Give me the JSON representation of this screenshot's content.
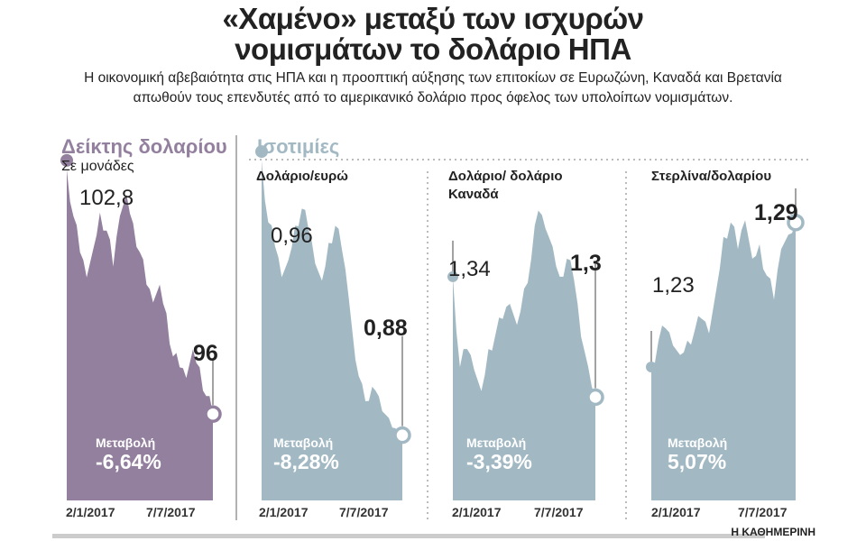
{
  "title_lines": [
    "«Χαμένο» μεταξύ των ισχυρών",
    "νομισμάτων το δολάριο ΗΠΑ"
  ],
  "subtitle_lines": [
    "Η οικονομική αβεβαιότητα στις ΗΠΑ και η προοπτική αύξησης των επιτοκίων σε Ευρωζώνη, Καναδά και Βρετανία",
    "απωθούν τους επενδυτές από το αμερικανικό δολάριο προς όφελος των υπολοίπων νομισμάτων."
  ],
  "sections": {
    "index": "Δείκτης δολαρίου",
    "index_unit": "Σε μονάδες",
    "rates": "Ισοτιμίες"
  },
  "source": "Η ΚΑΘΗΜΕΡΙΝΗ",
  "colors": {
    "index": "#93809f",
    "rates": "#a2b9c4"
  },
  "chart_data": [
    {
      "type": "area",
      "title": "",
      "start_label": "102,8",
      "end_label": "96",
      "change_label": "Μεταβολή",
      "change": "-6,64%",
      "x_ticks": [
        "2/1/2017",
        "7/7/2017"
      ],
      "ylim": [
        93.6,
        104
      ],
      "values": [
        102.8,
        101.5,
        100.5,
        99.8,
        100.6,
        101.6,
        101.1,
        100.1,
        101.5,
        102.1,
        101.3,
        100.5,
        99.6,
        99.1,
        99.6,
        98.8,
        97.6,
        97.3,
        97.0,
        97.8,
        97.3,
        96.5,
        96.0
      ]
    },
    {
      "type": "area",
      "title": "Δολάριο/ευρώ",
      "start_label": "0,96",
      "end_label": "0,88",
      "change_label": "Μεταβολή",
      "change": "-8,28%",
      "x_ticks": [
        "2/1/2017",
        "7/7/2017"
      ],
      "ylim": [
        0.861,
        0.97
      ],
      "values": [
        0.96,
        0.942,
        0.935,
        0.926,
        0.931,
        0.941,
        0.946,
        0.94,
        0.93,
        0.925,
        0.936,
        0.941,
        0.934,
        0.92,
        0.902,
        0.895,
        0.89,
        0.893,
        0.887,
        0.885,
        0.882,
        0.88
      ]
    },
    {
      "type": "area",
      "title": "Δολάριο/ δολάριο Καναδά",
      "start_label": "1,34",
      "end_label": "1,3",
      "change_label": "Μεταβολή",
      "change": "-3,39%",
      "x_ticks": [
        "2/1/2017",
        "7/7/2017"
      ],
      "ylim": [
        1.2657,
        1.39
      ],
      "values": [
        1.34,
        1.31,
        1.316,
        1.309,
        1.302,
        1.316,
        1.321,
        1.326,
        1.331,
        1.324,
        1.336,
        1.346,
        1.362,
        1.356,
        1.35,
        1.34,
        1.346,
        1.339,
        1.32,
        1.31,
        1.3
      ]
    },
    {
      "type": "area",
      "title": "Στερλίνα/δολαρίου",
      "start_label": "1,23",
      "end_label": "1,29",
      "change_label": "Μεταβολή",
      "change": "5,07%",
      "x_ticks": [
        "2/1/2017",
        "7/7/2017"
      ],
      "ylim": [
        1.1746,
        1.33
      ],
      "values": [
        1.23,
        1.241,
        1.246,
        1.239,
        1.235,
        1.241,
        1.245,
        1.25,
        1.244,
        1.262,
        1.284,
        1.29,
        1.279,
        1.291,
        1.275,
        1.281,
        1.268,
        1.258,
        1.279,
        1.285,
        1.29
      ]
    }
  ]
}
